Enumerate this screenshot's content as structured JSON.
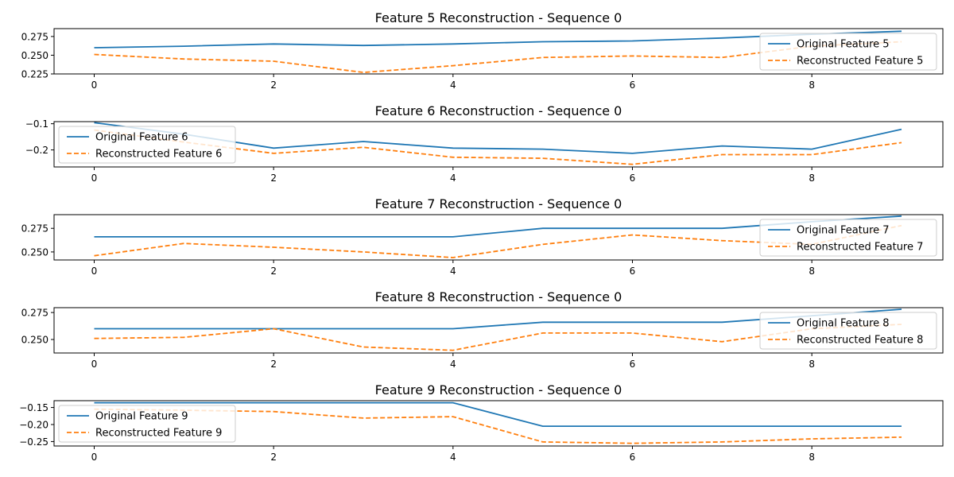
{
  "chart_data": [
    {
      "type": "line",
      "title": "Feature 5 Reconstruction - Sequence 0",
      "x": [
        0,
        1,
        2,
        3,
        4,
        5,
        6,
        7,
        8,
        9
      ],
      "xticks": [
        0,
        2,
        4,
        6,
        8
      ],
      "xtick_labels": [
        "0",
        "2",
        "4",
        "6",
        "8"
      ],
      "ylim": [
        0.225,
        0.2855
      ],
      "yticks": [
        0.225,
        0.25,
        0.275
      ],
      "ytick_labels": [
        "0.225",
        "0.250",
        "0.275"
      ],
      "legend_position": "right",
      "series": [
        {
          "name": "Original Feature 5",
          "values": [
            0.26,
            0.262,
            0.265,
            0.263,
            0.265,
            0.268,
            0.269,
            0.273,
            0.278,
            0.282
          ]
        },
        {
          "name": "Reconstructed Feature 5",
          "values": [
            0.251,
            0.245,
            0.242,
            0.227,
            0.236,
            0.247,
            0.249,
            0.247,
            0.262,
            0.268
          ]
        }
      ]
    },
    {
      "type": "line",
      "title": "Feature 6 Reconstruction - Sequence 0",
      "x": [
        0,
        1,
        2,
        3,
        4,
        5,
        6,
        7,
        8,
        9
      ],
      "xticks": [
        0,
        2,
        4,
        6,
        8
      ],
      "xtick_labels": [
        "0",
        "2",
        "4",
        "6",
        "8"
      ],
      "ylim": [
        -0.265,
        -0.092
      ],
      "yticks": [
        -0.2,
        -0.1
      ],
      "ytick_labels": [
        "−0.2",
        "−0.1"
      ],
      "legend_position": "left",
      "series": [
        {
          "name": "Original Feature 6",
          "values": [
            -0.096,
            -0.14,
            -0.193,
            -0.168,
            -0.193,
            -0.197,
            -0.213,
            -0.185,
            -0.197,
            -0.121
          ]
        },
        {
          "name": "Reconstructed Feature 6",
          "values": [
            -0.124,
            -0.17,
            -0.213,
            -0.19,
            -0.228,
            -0.232,
            -0.255,
            -0.218,
            -0.218,
            -0.172
          ]
        }
      ]
    },
    {
      "type": "line",
      "title": "Feature 7 Reconstruction - Sequence 0",
      "x": [
        0,
        1,
        2,
        3,
        4,
        5,
        6,
        7,
        8,
        9
      ],
      "xticks": [
        0,
        2,
        4,
        6,
        8
      ],
      "xtick_labels": [
        "0",
        "2",
        "4",
        "6",
        "8"
      ],
      "ylim": [
        0.2415,
        0.2895
      ],
      "yticks": [
        0.25,
        0.275
      ],
      "ytick_labels": [
        "0.250",
        "0.275"
      ],
      "legend_position": "right",
      "series": [
        {
          "name": "Original Feature 7",
          "values": [
            0.266,
            0.266,
            0.266,
            0.266,
            0.266,
            0.275,
            0.275,
            0.275,
            0.282,
            0.288
          ]
        },
        {
          "name": "Reconstructed Feature 7",
          "values": [
            0.246,
            0.259,
            0.255,
            0.25,
            0.244,
            0.258,
            0.268,
            0.262,
            0.258,
            0.278
          ]
        }
      ]
    },
    {
      "type": "line",
      "title": "Feature 8 Reconstruction - Sequence 0",
      "x": [
        0,
        1,
        2,
        3,
        4,
        5,
        6,
        7,
        8,
        9
      ],
      "xticks": [
        0,
        2,
        4,
        6,
        8
      ],
      "xtick_labels": [
        "0",
        "2",
        "4",
        "6",
        "8"
      ],
      "ylim": [
        0.2375,
        0.2795
      ],
      "yticks": [
        0.25,
        0.275
      ],
      "ytick_labels": [
        "0.250",
        "0.275"
      ],
      "legend_position": "right",
      "series": [
        {
          "name": "Original Feature 8",
          "values": [
            0.26,
            0.26,
            0.26,
            0.26,
            0.26,
            0.266,
            0.266,
            0.266,
            0.272,
            0.278
          ]
        },
        {
          "name": "Reconstructed Feature 8",
          "values": [
            0.251,
            0.252,
            0.26,
            0.243,
            0.24,
            0.256,
            0.256,
            0.248,
            0.26,
            0.264
          ]
        }
      ]
    },
    {
      "type": "line",
      "title": "Feature 9 Reconstruction - Sequence 0",
      "x": [
        0,
        1,
        2,
        3,
        4,
        5,
        6,
        7,
        8,
        9
      ],
      "xticks": [
        0,
        2,
        4,
        6,
        8
      ],
      "xtick_labels": [
        "0",
        "2",
        "4",
        "6",
        "8"
      ],
      "ylim": [
        -0.263,
        -0.13
      ],
      "yticks": [
        -0.25,
        -0.2,
        -0.15
      ],
      "ytick_labels": [
        "−0.25",
        "−0.20",
        "−0.15"
      ],
      "legend_position": "left",
      "series": [
        {
          "name": "Original Feature 9",
          "values": [
            -0.136,
            -0.136,
            -0.136,
            -0.136,
            -0.136,
            -0.205,
            -0.205,
            -0.205,
            -0.205,
            -0.205
          ]
        },
        {
          "name": "Reconstructed Feature 9",
          "values": [
            -0.155,
            -0.158,
            -0.162,
            -0.181,
            -0.177,
            -0.251,
            -0.255,
            -0.251,
            -0.242,
            -0.237
          ]
        }
      ]
    }
  ],
  "colors": {
    "original": "#1f77b4",
    "reconstructed": "#ff7f0e",
    "axes": "#000000",
    "background": "#ffffff"
  }
}
